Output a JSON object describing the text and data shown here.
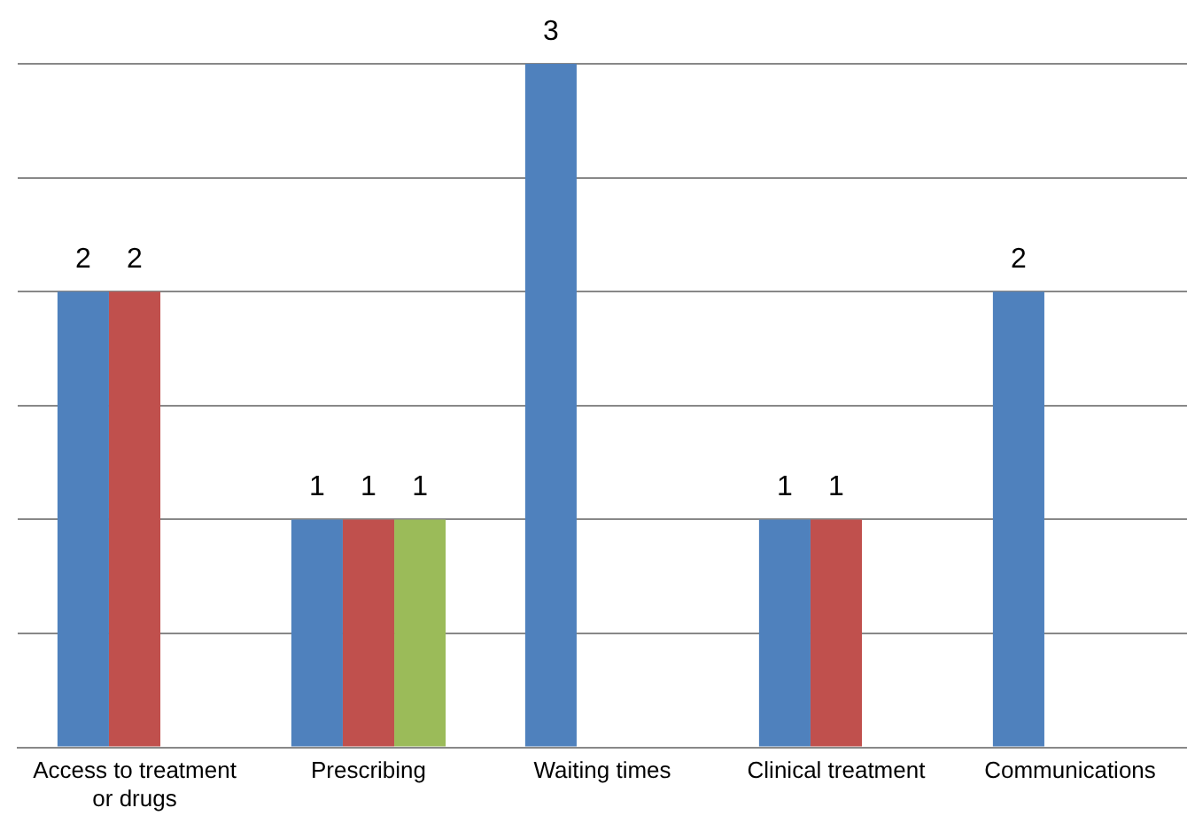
{
  "chart_data": {
    "type": "bar",
    "categories": [
      "Access to treatment or drugs",
      "Prescribing",
      "Waiting times",
      "Clinical treatment",
      "Communications"
    ],
    "series": [
      {
        "color": "#4f81bd",
        "values": [
          2,
          1,
          3,
          1,
          2
        ]
      },
      {
        "color": "#c0504d",
        "values": [
          2,
          1,
          null,
          1,
          null
        ]
      },
      {
        "color": "#9bbb59",
        "values": [
          null,
          1,
          null,
          null,
          null
        ]
      }
    ],
    "ylim": [
      0,
      3
    ],
    "yticks": [
      {
        "value": 0,
        "label": null
      },
      {
        "value": 0.5,
        "label": null
      },
      {
        "value": 1,
        "label": null
      },
      {
        "value": 1.5,
        "label": null
      },
      {
        "value": 2,
        "label": null
      },
      {
        "value": 2.5,
        "label": null
      },
      {
        "value": 3,
        "label": null
      }
    ],
    "tick_labels": "x",
    "grid": "y",
    "legend": false,
    "data_labels": true
  }
}
